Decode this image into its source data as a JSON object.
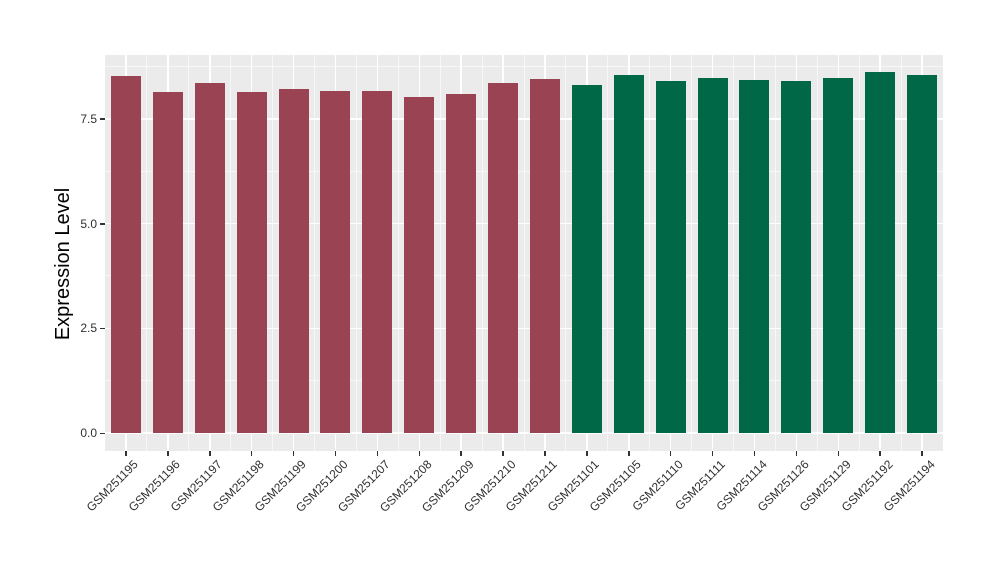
{
  "figure": {
    "background": "#FFFFFF",
    "panel_background": "#EBEBEB",
    "gridline_color": "#FFFFFF",
    "tick_mark_color": "#333333",
    "axis_text_color": "#303030",
    "axis_title_color": "#000000"
  },
  "chart_data": {
    "type": "bar",
    "title": "",
    "xlabel": "",
    "ylabel": "Expression Level",
    "ylim": [
      0,
      9.05
    ],
    "ytick_labels": [
      "0.0",
      "2.5",
      "5.0",
      "7.5"
    ],
    "ytick_values": [
      0,
      2.5,
      5,
      7.5
    ],
    "minor_ytick_values": [
      1.25,
      3.75,
      6.25,
      8.75
    ],
    "grid": "on",
    "legend_position": "none",
    "bar_colors": {
      "left_group": "#9A4453",
      "right_group": "#006747"
    },
    "bars": [
      {
        "label": "GSM251195",
        "value": 8.53,
        "color": "#9A4453"
      },
      {
        "label": "GSM251196",
        "value": 8.14,
        "color": "#9A4453"
      },
      {
        "label": "GSM251197",
        "value": 8.36,
        "color": "#9A4453"
      },
      {
        "label": "GSM251198",
        "value": 8.14,
        "color": "#9A4453"
      },
      {
        "label": "GSM251199",
        "value": 8.21,
        "color": "#9A4453"
      },
      {
        "label": "GSM251200",
        "value": 8.16,
        "color": "#9A4453"
      },
      {
        "label": "GSM251207",
        "value": 8.16,
        "color": "#9A4453"
      },
      {
        "label": "GSM251208",
        "value": 8.02,
        "color": "#9A4453"
      },
      {
        "label": "GSM251209",
        "value": 8.09,
        "color": "#9A4453"
      },
      {
        "label": "GSM251210",
        "value": 8.37,
        "color": "#9A4453"
      },
      {
        "label": "GSM251211",
        "value": 8.45,
        "color": "#9A4453"
      },
      {
        "label": "GSM251101",
        "value": 8.3,
        "color": "#006747"
      },
      {
        "label": "GSM251105",
        "value": 8.56,
        "color": "#006747"
      },
      {
        "label": "GSM251110",
        "value": 8.4,
        "color": "#006747"
      },
      {
        "label": "GSM251111",
        "value": 8.49,
        "color": "#006747"
      },
      {
        "label": "GSM251114",
        "value": 8.43,
        "color": "#006747"
      },
      {
        "label": "GSM251126",
        "value": 8.4,
        "color": "#006747"
      },
      {
        "label": "GSM251129",
        "value": 8.48,
        "color": "#006747"
      },
      {
        "label": "GSM251192",
        "value": 8.61,
        "color": "#006747"
      },
      {
        "label": "GSM251194",
        "value": 8.56,
        "color": "#006747"
      }
    ]
  }
}
